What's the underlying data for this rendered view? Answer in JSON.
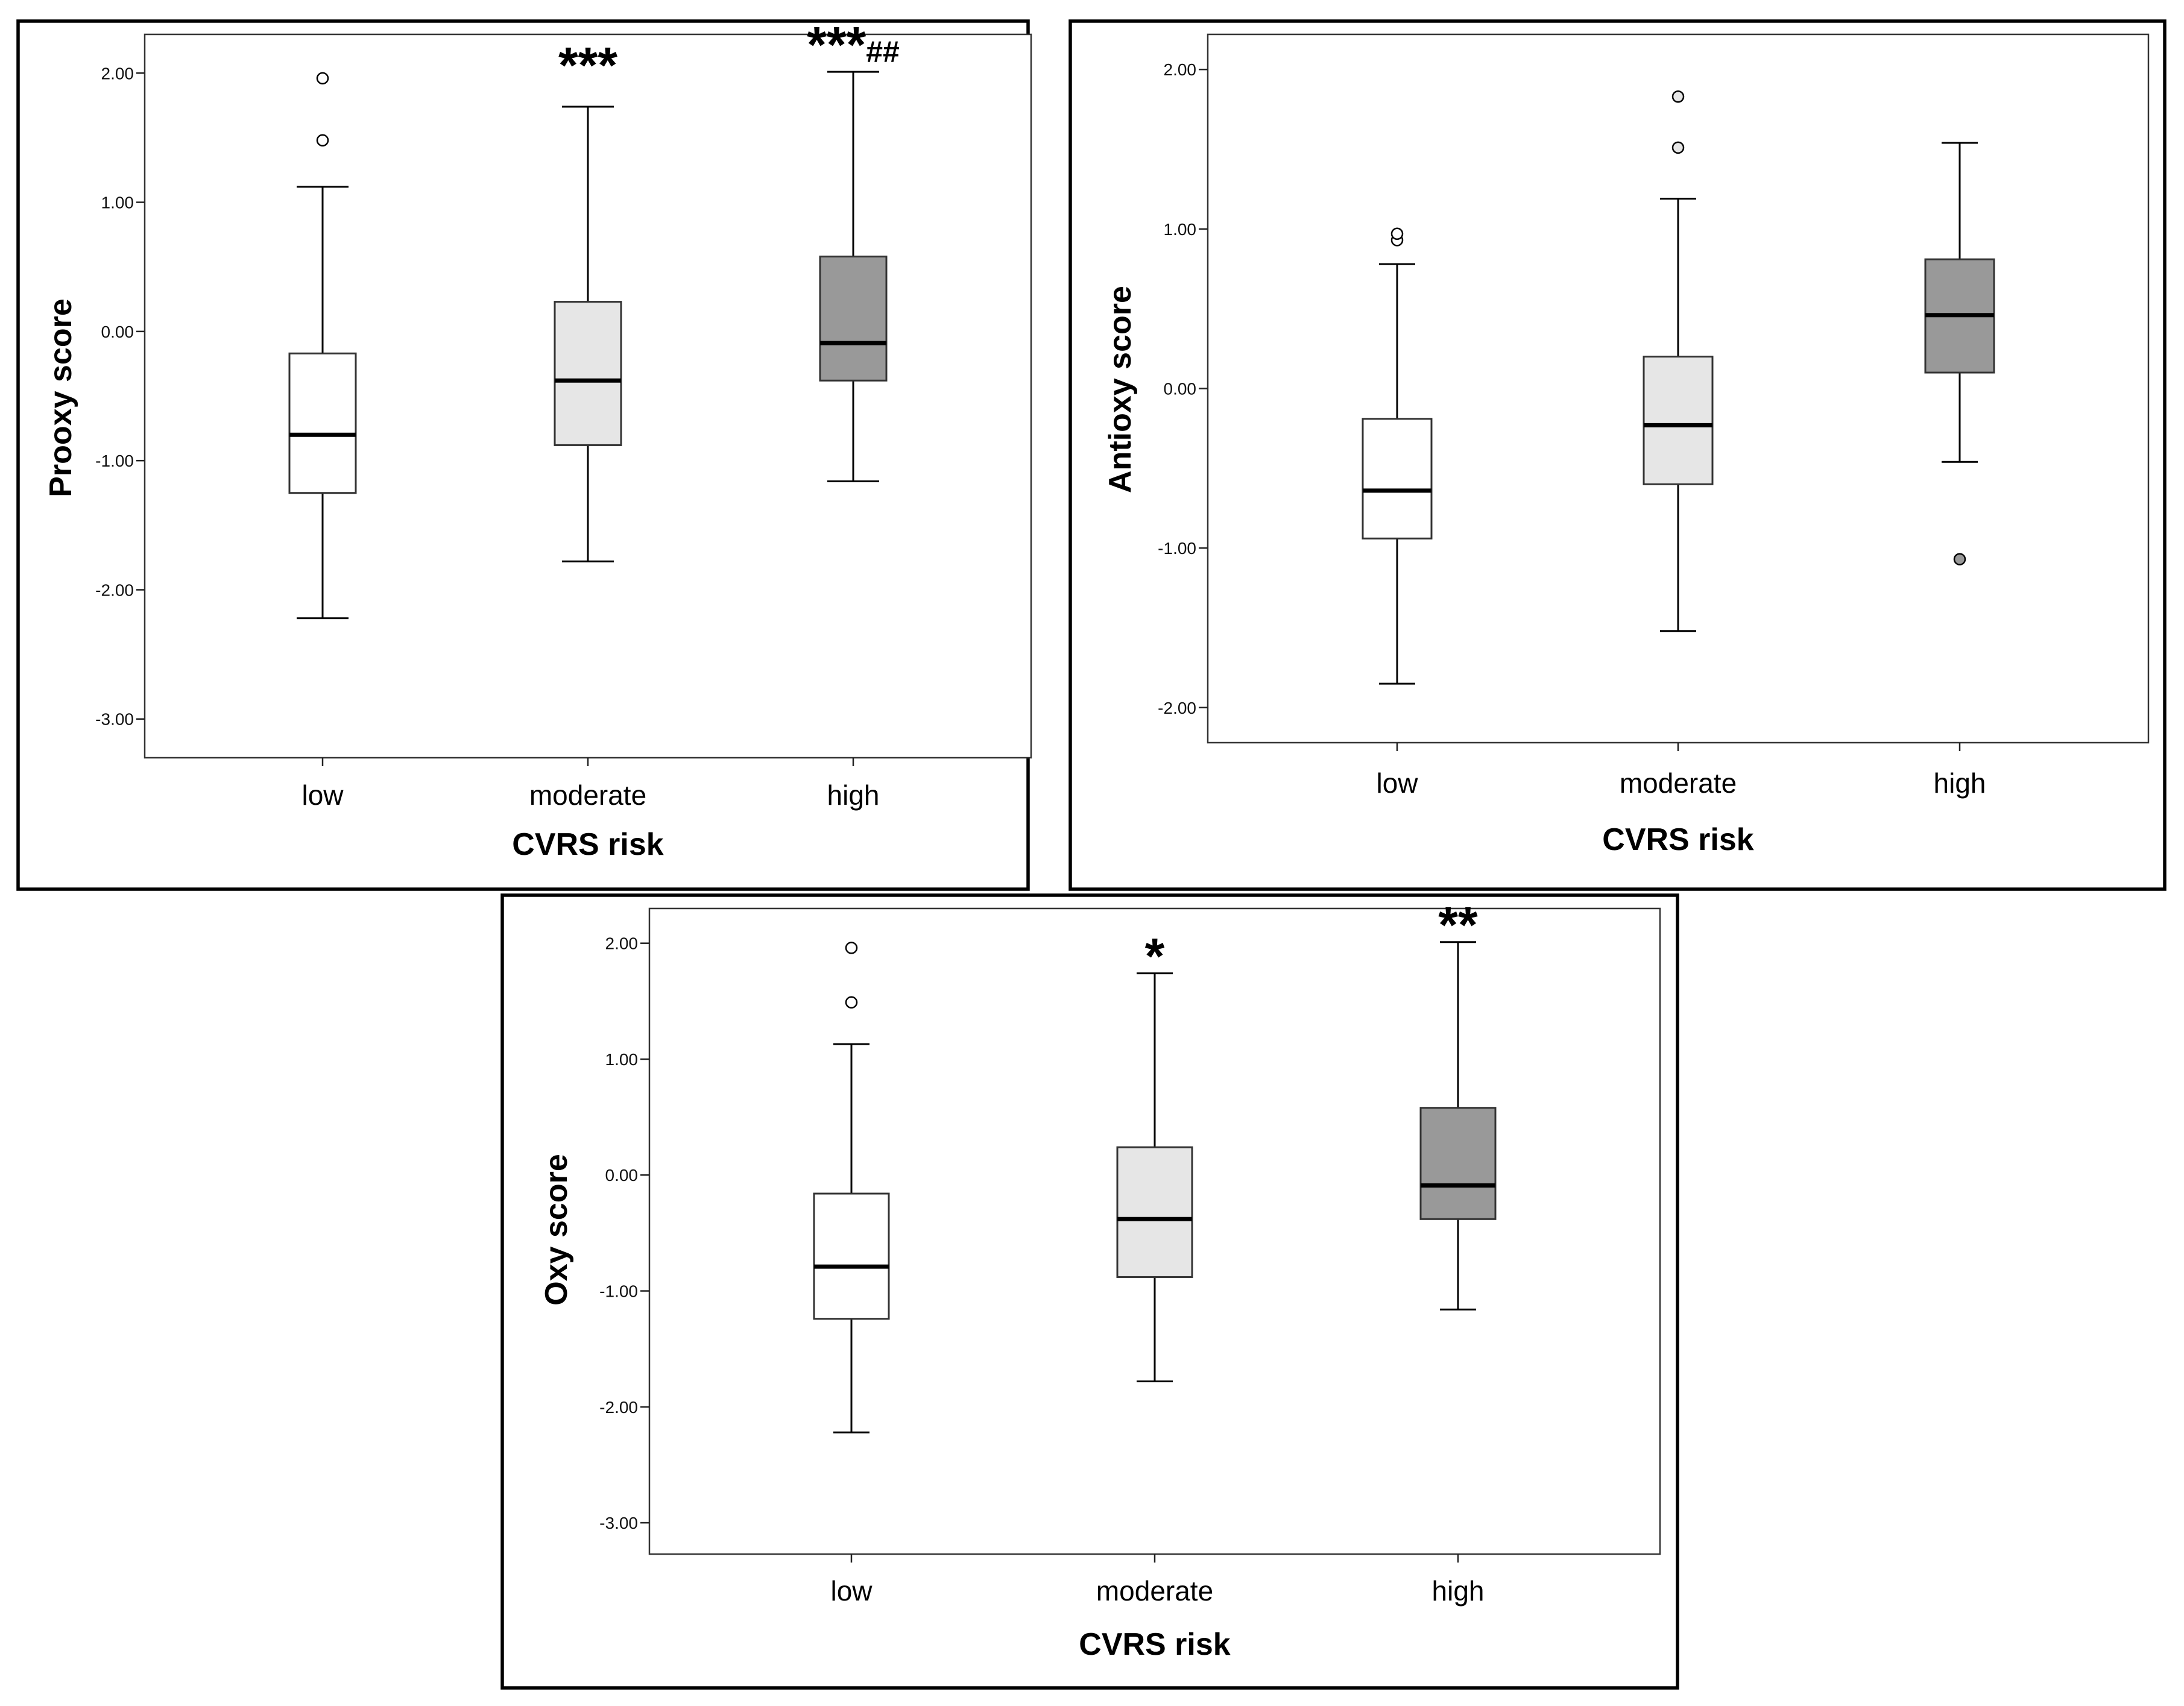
{
  "chart_data": [
    {
      "type": "box",
      "ylabel": "Prooxy score",
      "xlabel": "CVRS risk",
      "categories": [
        "low",
        "moderate",
        "high"
      ],
      "ylim": [
        -3.3,
        2.3
      ],
      "yticks": [
        2.0,
        1.0,
        0.0,
        -1.0,
        -2.0,
        -3.0
      ],
      "ytick_labels": [
        "2.00",
        "1.00",
        "0.00",
        "-1.00",
        "-2.00",
        "-3.00"
      ],
      "boxes": [
        {
          "category": "low",
          "whisker_low": -2.22,
          "q1": -1.25,
          "median": -0.8,
          "q3": -0.17,
          "whisker_high": 1.12,
          "outliers": [
            1.48,
            1.96
          ],
          "fill": "#ffffff",
          "outlier_fill": "#ffffff"
        },
        {
          "category": "moderate",
          "whisker_low": -1.78,
          "q1": -0.88,
          "median": -0.38,
          "q3": 0.23,
          "whisker_high": 1.74,
          "outliers": [],
          "fill": "#e6e6e6",
          "outlier_fill": "#e6e6e6"
        },
        {
          "category": "high",
          "whisker_low": -1.16,
          "q1": -0.38,
          "median": -0.09,
          "q3": 0.58,
          "whisker_high": 2.01,
          "outliers": [],
          "fill": "#999999",
          "outlier_fill": "#999999"
        }
      ],
      "annotations": [
        {
          "category": "moderate",
          "text": "***",
          "extra": ""
        },
        {
          "category": "high",
          "text": "***",
          "extra": "##"
        }
      ]
    },
    {
      "type": "box",
      "ylabel": "Antioxy score",
      "xlabel": "CVRS risk",
      "categories": [
        "low",
        "moderate",
        "high"
      ],
      "ylim": [
        -2.22,
        2.22
      ],
      "yticks": [
        2.0,
        1.0,
        0.0,
        -1.0,
        -2.0
      ],
      "ytick_labels": [
        "2.00",
        "1.00",
        "0.00",
        "-1.00",
        "-2.00"
      ],
      "boxes": [
        {
          "category": "low",
          "whisker_low": -1.85,
          "q1": -0.94,
          "median": -0.64,
          "q3": -0.19,
          "whisker_high": 0.78,
          "outliers": [
            0.93,
            0.97
          ],
          "fill": "#ffffff",
          "outlier_fill": "#ffffff"
        },
        {
          "category": "moderate",
          "whisker_low": -1.52,
          "q1": -0.6,
          "median": -0.23,
          "q3": 0.2,
          "whisker_high": 1.19,
          "outliers": [
            1.51,
            1.83
          ],
          "fill": "#e6e6e6",
          "outlier_fill": "#e6e6e6"
        },
        {
          "category": "high",
          "whisker_low": -0.46,
          "q1": 0.1,
          "median": 0.46,
          "q3": 0.81,
          "whisker_high": 1.54,
          "outliers": [
            -1.07
          ],
          "fill": "#999999",
          "outlier_fill": "#999999"
        }
      ],
      "annotations": []
    },
    {
      "type": "box",
      "ylabel": "Oxy score",
      "xlabel": "CVRS risk",
      "categories": [
        "low",
        "moderate",
        "high"
      ],
      "ylim": [
        -3.27,
        2.3
      ],
      "yticks": [
        2.0,
        1.0,
        0.0,
        -1.0,
        -2.0,
        -3.0
      ],
      "ytick_labels": [
        "2.00",
        "1.00",
        "0.00",
        "-1.00",
        "-2.00",
        "-3.00"
      ],
      "boxes": [
        {
          "category": "low",
          "whisker_low": -2.22,
          "q1": -1.24,
          "median": -0.79,
          "q3": -0.16,
          "whisker_high": 1.13,
          "outliers": [
            1.49,
            1.96
          ],
          "fill": "#ffffff",
          "outlier_fill": "#ffffff"
        },
        {
          "category": "moderate",
          "whisker_low": -1.78,
          "q1": -0.88,
          "median": -0.38,
          "q3": 0.24,
          "whisker_high": 1.74,
          "outliers": [],
          "fill": "#e6e6e6",
          "outlier_fill": "#e6e6e6"
        },
        {
          "category": "high",
          "whisker_low": -1.16,
          "q1": -0.38,
          "median": -0.09,
          "q3": 0.58,
          "whisker_high": 2.01,
          "outliers": [],
          "fill": "#999999",
          "outlier_fill": "#999999"
        }
      ],
      "annotations": [
        {
          "category": "moderate",
          "text": "*",
          "extra": ""
        },
        {
          "category": "high",
          "text": "**",
          "extra": ""
        }
      ]
    }
  ]
}
